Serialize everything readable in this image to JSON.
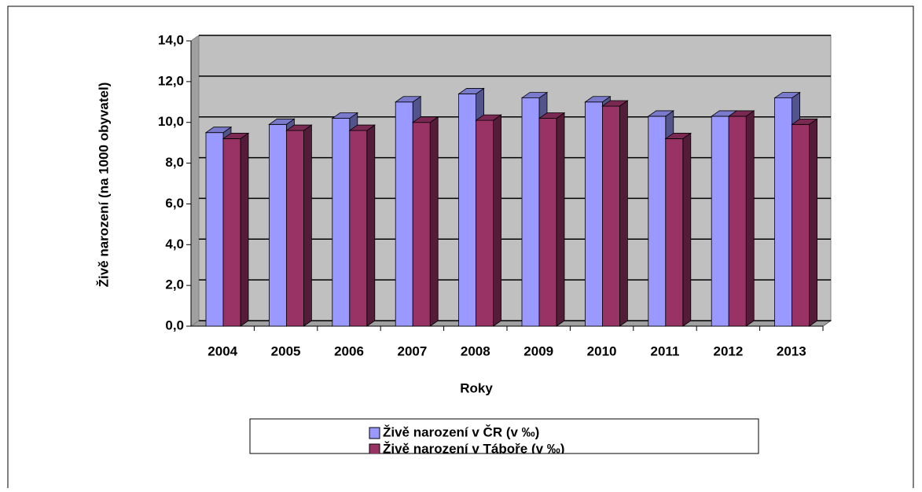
{
  "chart_data": {
    "type": "bar3d",
    "xlabel": "Roky",
    "ylabel": "Živě narození (na 1000 obyvatel)",
    "categories": [
      "2004",
      "2005",
      "2006",
      "2007",
      "2008",
      "2009",
      "2010",
      "2011",
      "2012",
      "2013"
    ],
    "series": [
      {
        "name": "Živě narození v ČR (v ‰)",
        "color": "#9999ff",
        "values": [
          9.5,
          9.9,
          10.2,
          11.0,
          11.4,
          11.2,
          11.0,
          10.3,
          10.3,
          11.2
        ]
      },
      {
        "name": "Živě narození v Táboře (v ‰)",
        "color": "#993366",
        "values": [
          9.2,
          9.6,
          9.6,
          10.0,
          10.1,
          10.2,
          10.8,
          9.2,
          10.3,
          9.9
        ]
      }
    ],
    "ylim": [
      0,
      14
    ],
    "yticks": [
      {
        "value": 0,
        "label": "0,0"
      },
      {
        "value": 2,
        "label": "2,0"
      },
      {
        "value": 4,
        "label": "4,0"
      },
      {
        "value": 6,
        "label": "6,0"
      },
      {
        "value": 8,
        "label": "8,0"
      },
      {
        "value": 10,
        "label": "10,0"
      },
      {
        "value": 12,
        "label": "12,0"
      },
      {
        "value": 14,
        "label": "14,0"
      }
    ],
    "grid": true
  }
}
